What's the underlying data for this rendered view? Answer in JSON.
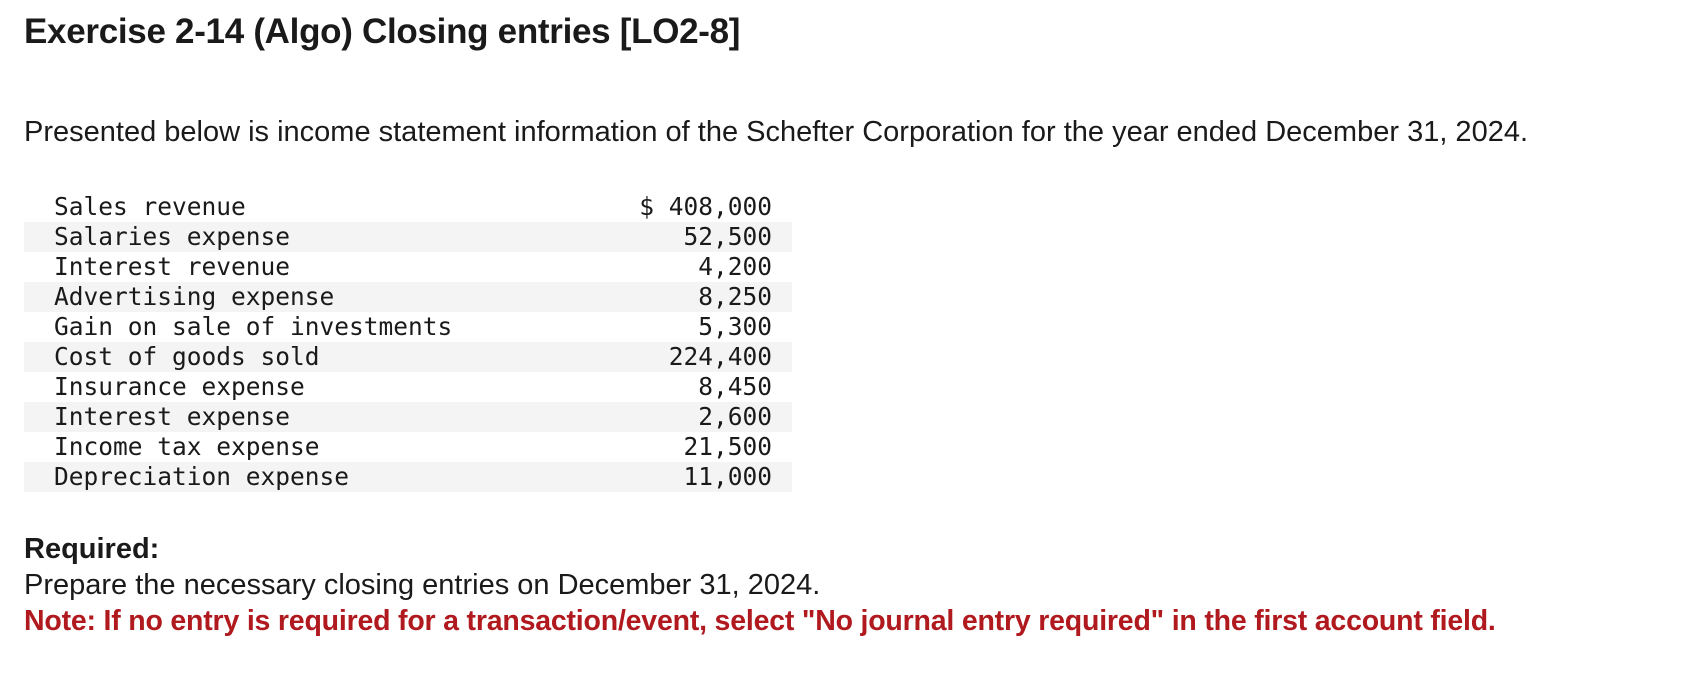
{
  "title": "Exercise 2-14 (Algo) Closing entries [LO2-8]",
  "intro": "Presented below is income statement information of the Schefter Corporation for the year ended December 31, 2024.",
  "income_statement": {
    "rows": [
      {
        "label": "Sales revenue",
        "amount": "$ 408,000"
      },
      {
        "label": "Salaries expense",
        "amount": "52,500"
      },
      {
        "label": "Interest revenue",
        "amount": "4,200"
      },
      {
        "label": "Advertising expense",
        "amount": "8,250"
      },
      {
        "label": "Gain on sale of investments",
        "amount": "5,300"
      },
      {
        "label": "Cost of goods sold",
        "amount": "224,400"
      },
      {
        "label": "Insurance expense",
        "amount": "8,450"
      },
      {
        "label": "Interest expense",
        "amount": "2,600"
      },
      {
        "label": "Income tax expense",
        "amount": "21,500"
      },
      {
        "label": "Depreciation expense",
        "amount": "11,000"
      }
    ]
  },
  "required": {
    "heading": "Required:",
    "text": "Prepare the necessary closing entries on December 31, 2024.",
    "note": "Note: If no entry is required for a transaction/event, select \"No journal entry required\" in the first account field."
  },
  "colors": {
    "note": "#b0191e",
    "row_stripe": "#f4f4f4"
  }
}
